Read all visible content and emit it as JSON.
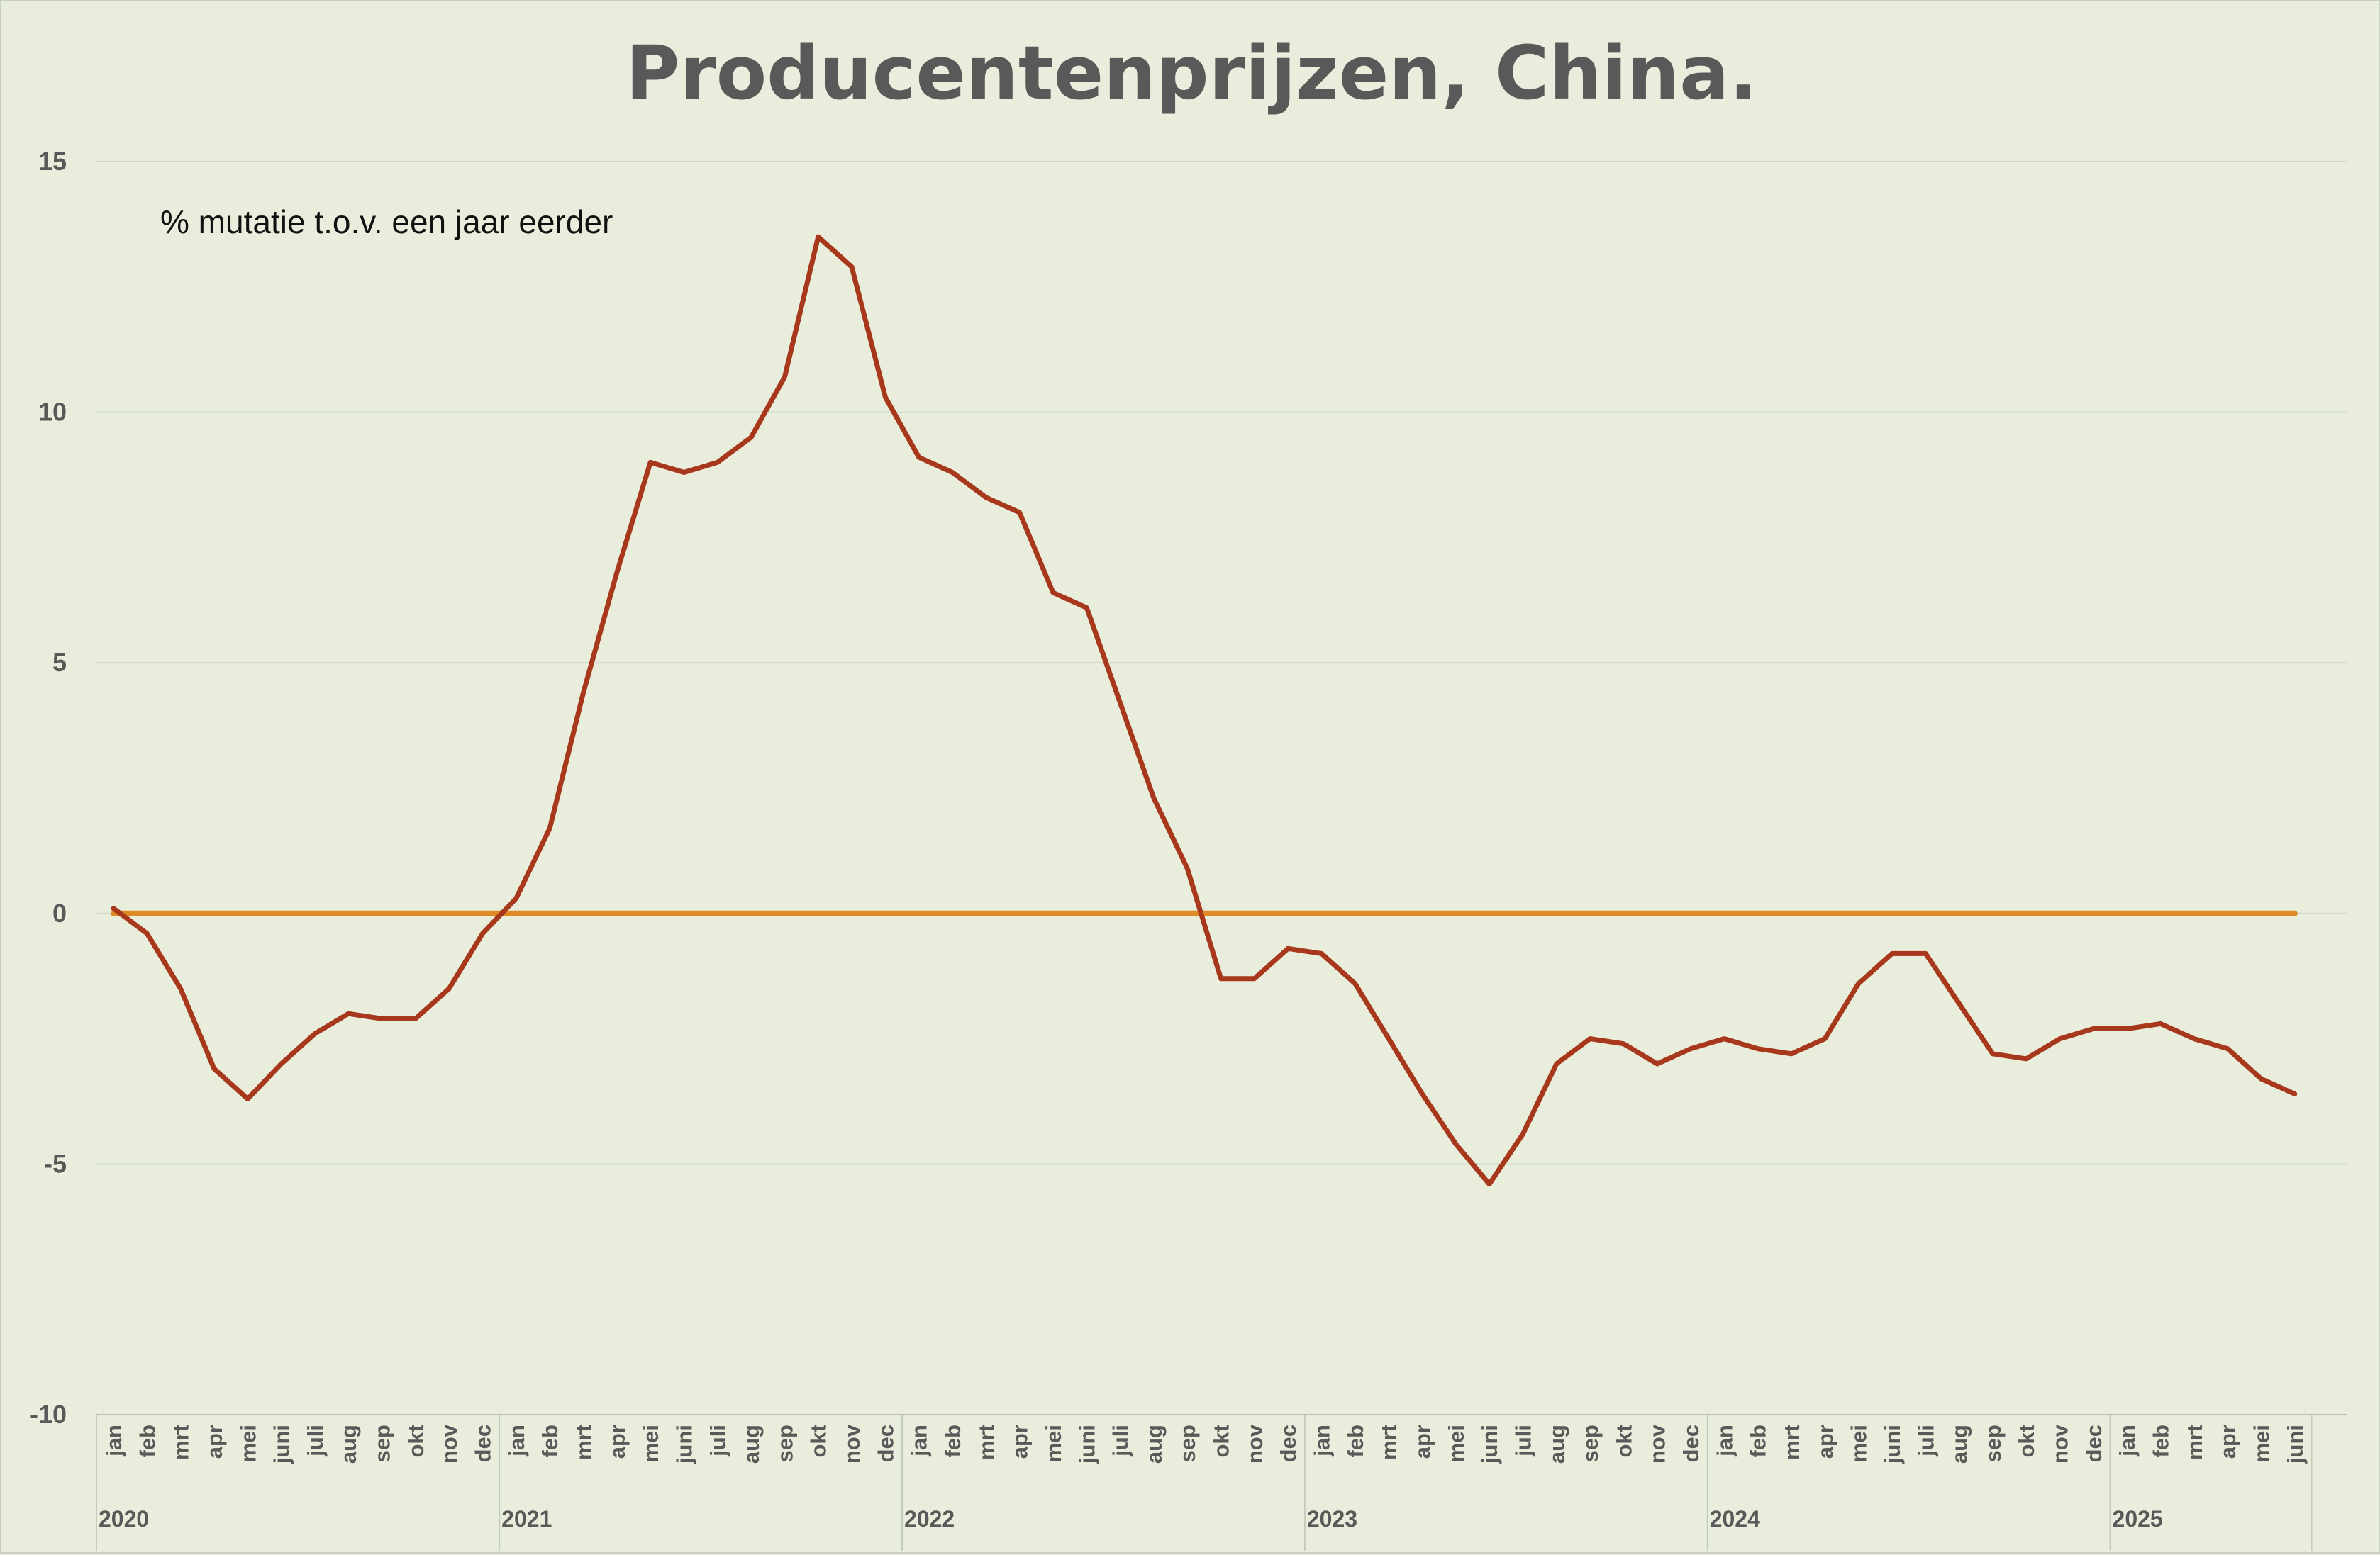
{
  "chart_data": {
    "type": "line",
    "title": "Producentenprijzen, China.",
    "annotation": "% mutatie t.o.v. een jaar eerder",
    "ylim": [
      -10,
      15
    ],
    "yticks": [
      "15",
      "10",
      "5",
      "0",
      "-5",
      "-10"
    ],
    "grid": true,
    "categories": [
      "jan",
      "feb",
      "mrt",
      "apr",
      "mei",
      "juni",
      "juli",
      "aug",
      "sep",
      "okt",
      "nov",
      "dec",
      "jan",
      "feb",
      "mrt",
      "apr",
      "mei",
      "juni",
      "juli",
      "aug",
      "sep",
      "okt",
      "nov",
      "dec",
      "jan",
      "feb",
      "mrt",
      "apr",
      "mei",
      "juni",
      "juli",
      "aug",
      "sep",
      "okt",
      "nov",
      "dec",
      "jan",
      "feb",
      "mrt",
      "apr",
      "mei",
      "juni",
      "juli",
      "aug",
      "sep",
      "okt",
      "nov",
      "dec",
      "jan",
      "feb",
      "mrt",
      "apr",
      "mei",
      "juni",
      "juli",
      "aug",
      "sep",
      "okt",
      "nov",
      "dec",
      "jan",
      "feb",
      "mrt",
      "apr",
      "mei",
      "juni"
    ],
    "years": [
      {
        "label": "2020",
        "start": 0,
        "count": 12
      },
      {
        "label": "2021",
        "start": 12,
        "count": 12
      },
      {
        "label": "2022",
        "start": 24,
        "count": 12
      },
      {
        "label": "2023",
        "start": 36,
        "count": 12
      },
      {
        "label": "2024",
        "start": 48,
        "count": 12
      },
      {
        "label": "2025",
        "start": 60,
        "count": 6
      }
    ],
    "series": [
      {
        "color": "#a8381c",
        "values": [
          0.1,
          -0.4,
          -1.5,
          -3.1,
          -3.7,
          -3.0,
          -2.4,
          -2.0,
          -2.1,
          -2.1,
          -1.5,
          -0.4,
          0.3,
          1.7,
          4.4,
          6.8,
          9.0,
          8.8,
          9.0,
          9.5,
          10.7,
          13.5,
          12.9,
          10.3,
          9.1,
          8.8,
          8.3,
          8.0,
          6.4,
          6.1,
          4.2,
          2.3,
          0.9,
          -1.3,
          -1.3,
          -0.7,
          -0.8,
          -1.4,
          -2.5,
          -3.6,
          -4.6,
          -5.4,
          -4.4,
          -3.0,
          -2.5,
          -2.6,
          -3.0,
          -2.7,
          -2.5,
          -2.7,
          -2.8,
          -2.5,
          -1.4,
          -0.8,
          -0.8,
          -1.8,
          -2.8,
          -2.9,
          -2.5,
          -2.3,
          -2.3,
          -2.2,
          -2.5,
          -2.7,
          -3.3,
          -3.6
        ]
      },
      {
        "color": "#e08a25",
        "values": [
          0,
          0,
          0,
          0,
          0,
          0,
          0,
          0,
          0,
          0,
          0,
          0,
          0,
          0,
          0,
          0,
          0,
          0,
          0,
          0,
          0,
          0,
          0,
          0,
          0,
          0,
          0,
          0,
          0,
          0,
          0,
          0,
          0,
          0,
          0,
          0,
          0,
          0,
          0,
          0,
          0,
          0,
          0,
          0,
          0,
          0,
          0,
          0,
          0,
          0,
          0,
          0,
          0,
          0,
          0,
          0,
          0,
          0,
          0,
          0,
          0,
          0,
          0,
          0,
          0,
          0
        ]
      }
    ]
  }
}
